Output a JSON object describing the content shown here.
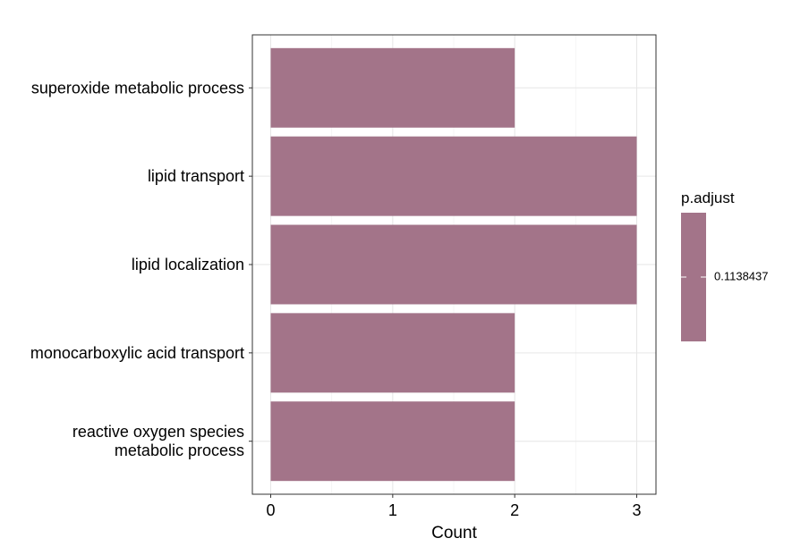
{
  "chart_data": {
    "type": "bar",
    "orientation": "horizontal",
    "categories": [
      "superoxide metabolic process",
      "lipid transport",
      "lipid localization",
      "monocarboxylic acid transport",
      "reactive oxygen species\nmetabolic process"
    ],
    "values": [
      2,
      3,
      3,
      2,
      2
    ],
    "xlabel": "Count",
    "ylabel": "",
    "xlim": [
      0,
      3.15
    ],
    "xticks": [
      0,
      1,
      2,
      3
    ],
    "grid": true,
    "bar_color": "#A37489",
    "legend": {
      "title": "p.adjust",
      "label": "0.1138437",
      "position": "right"
    }
  }
}
